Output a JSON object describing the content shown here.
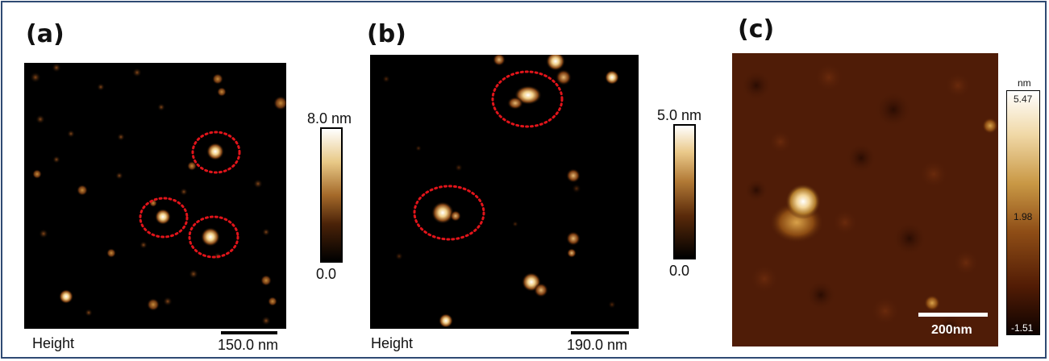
{
  "panels": {
    "a": {
      "label": "(a)",
      "footer_left": "Height",
      "scale_label": "150.0 nm",
      "colorbar_max": "8.0 nm",
      "colorbar_min": "0.0"
    },
    "b": {
      "label": "(b)",
      "footer_left": "Height",
      "scale_label": "190.0 nm",
      "colorbar_max": "5.0 nm",
      "colorbar_min": "0.0"
    },
    "c": {
      "label": "(c)",
      "scale_label": "200nm",
      "colorbar_unit": "nm",
      "colorbar_max": "5.47",
      "colorbar_mid": "1.98",
      "colorbar_min": "-1.51"
    }
  },
  "colors": {
    "border": "#2f4a73",
    "highlight_circle": "#e0141a",
    "afm_dark": "#000000",
    "afm_brown": "#7a3b10",
    "afm_gold": "#d7a14a",
    "afm_white": "#ffffff"
  }
}
